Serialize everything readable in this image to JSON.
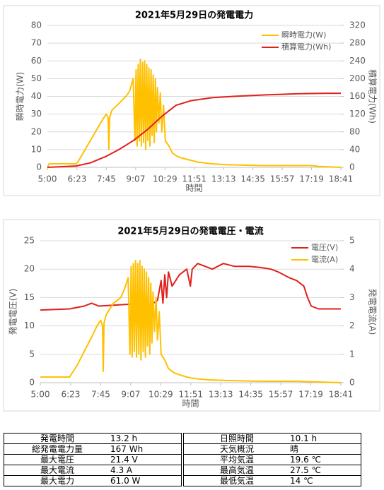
{
  "chart_data": [
    {
      "type": "line",
      "title": "2021年5月29日の発電電力",
      "x_label": "時間",
      "y_label": "瞬時電力(W)",
      "y2_label": "積算電力(Wh)",
      "grid": true,
      "xlim": [
        300,
        1121
      ],
      "xticks": [
        {
          "value": 300,
          "label": "5:00"
        },
        {
          "value": 383,
          "label": "6:23"
        },
        {
          "value": 465,
          "label": "7:45"
        },
        {
          "value": 547,
          "label": "9:07"
        },
        {
          "value": 629,
          "label": "10:29"
        },
        {
          "value": 711,
          "label": "11:51"
        },
        {
          "value": 793,
          "label": "13:13"
        },
        {
          "value": 875,
          "label": "14:35"
        },
        {
          "value": 957,
          "label": "15:57"
        },
        {
          "value": 1039,
          "label": "17:19"
        },
        {
          "value": 1121,
          "label": "18:41"
        }
      ],
      "ylim": [
        0,
        80
      ],
      "yticks": [
        0,
        10,
        20,
        30,
        40,
        50,
        60,
        70,
        80
      ],
      "y2lim": [
        0,
        320
      ],
      "y2ticks": [
        0,
        40,
        80,
        120,
        160,
        200,
        240,
        280,
        320
      ],
      "series": [
        {
          "name": "瞬時電力(W)",
          "color": "#ffc000",
          "x": [
            300,
            305,
            340,
            380,
            385,
            400,
            420,
            440,
            455,
            465,
            470,
            472,
            474,
            480,
            500,
            520,
            530,
            540,
            545,
            548,
            551,
            554,
            557,
            560,
            563,
            566,
            569,
            572,
            575,
            578,
            581,
            584,
            587,
            590,
            593,
            596,
            599,
            602,
            605,
            608,
            612,
            616,
            620,
            625,
            630,
            640,
            650,
            665,
            680,
            700,
            720,
            760,
            800,
            900,
            1000,
            1040,
            1060,
            1121
          ],
          "values": [
            0,
            2,
            2,
            2,
            3,
            8,
            15,
            22,
            27,
            30,
            28,
            10,
            28,
            32,
            36,
            40,
            43,
            50,
            15,
            55,
            12,
            58,
            15,
            61,
            12,
            59,
            14,
            60,
            10,
            58,
            15,
            56,
            12,
            55,
            18,
            52,
            14,
            50,
            20,
            45,
            25,
            42,
            20,
            35,
            15,
            12,
            8,
            6,
            5,
            4,
            3,
            2,
            1.5,
            1,
            1,
            1,
            0.5,
            0
          ]
        },
        {
          "name": "積算電力(Wh)",
          "color": "#e0201b",
          "axis": "y2",
          "x": [
            300,
            380,
            420,
            465,
            500,
            540,
            580,
            620,
            660,
            700,
            760,
            820,
            900,
            1000,
            1080,
            1121
          ],
          "values": [
            0,
            3,
            10,
            25,
            40,
            60,
            85,
            115,
            140,
            150,
            157,
            160,
            163,
            166,
            167,
            167
          ]
        }
      ]
    },
    {
      "type": "line",
      "title": "2021年5月29日の発電電圧・電流",
      "x_label": "時間",
      "y_label": "発電電圧(V)",
      "y2_label": "発電電流(A)",
      "grid": true,
      "xlim": [
        300,
        1121
      ],
      "xticks": [
        {
          "value": 300,
          "label": "5:00"
        },
        {
          "value": 383,
          "label": "6:23"
        },
        {
          "value": 465,
          "label": "7:45"
        },
        {
          "value": 547,
          "label": "9:07"
        },
        {
          "value": 629,
          "label": "10:29"
        },
        {
          "value": 711,
          "label": "11:51"
        },
        {
          "value": 793,
          "label": "13:13"
        },
        {
          "value": 875,
          "label": "14:35"
        },
        {
          "value": 957,
          "label": "15:57"
        },
        {
          "value": 1039,
          "label": "17:19"
        },
        {
          "value": 1121,
          "label": "18:41"
        }
      ],
      "ylim": [
        0,
        25
      ],
      "yticks": [
        0,
        5,
        10,
        15,
        20,
        25
      ],
      "y2lim": [
        0,
        5
      ],
      "y2ticks": [
        0,
        1,
        2,
        3,
        4,
        5
      ],
      "series": [
        {
          "name": "電圧(V)",
          "color": "#e0201b",
          "x": [
            300,
            380,
            420,
            440,
            460,
            540,
            580,
            600,
            620,
            630,
            635,
            640,
            645,
            650,
            660,
            680,
            700,
            710,
            715,
            730,
            750,
            770,
            800,
            830,
            870,
            900,
            930,
            950,
            980,
            1000,
            1020,
            1030,
            1040,
            1060,
            1121
          ],
          "values": [
            12.8,
            13,
            13.5,
            14,
            13.5,
            13.8,
            14,
            13.6,
            14.5,
            18,
            14,
            19,
            15,
            19.5,
            17,
            19,
            20,
            17,
            20,
            21,
            20.5,
            20,
            21,
            20.5,
            20.5,
            20.3,
            20,
            19.5,
            18.5,
            18,
            17,
            15,
            13.5,
            13,
            13
          ]
        },
        {
          "name": "電流(A)",
          "color": "#ffc000",
          "axis": "y2",
          "x": [
            300,
            305,
            380,
            385,
            400,
            420,
            440,
            455,
            465,
            470,
            472,
            474,
            480,
            500,
            520,
            530,
            540,
            545,
            548,
            551,
            554,
            557,
            560,
            563,
            566,
            569,
            572,
            575,
            578,
            581,
            584,
            587,
            590,
            593,
            596,
            599,
            602,
            605,
            608,
            612,
            616,
            620,
            625,
            630,
            640,
            650,
            665,
            680,
            700,
            720,
            760,
            800,
            900,
            1000,
            1121
          ],
          "values": [
            0.2,
            0.2,
            0.2,
            0.3,
            0.6,
            1.1,
            1.6,
            2.0,
            2.2,
            2.0,
            0.4,
            2.1,
            2.4,
            2.8,
            3.0,
            3.3,
            3.7,
            1.0,
            4.1,
            0.9,
            4.2,
            1.1,
            4.3,
            0.9,
            4.2,
            1.0,
            4.3,
            0.8,
            4.1,
            1.1,
            4.0,
            0.9,
            3.9,
            1.3,
            3.7,
            1.0,
            3.5,
            1.4,
            3.2,
            1.8,
            3.0,
            1.5,
            2.5,
            1.0,
            0.8,
            0.5,
            0.35,
            0.28,
            0.2,
            0.15,
            0.1,
            0.08,
            0.05,
            0.05,
            0
          ]
        }
      ]
    }
  ],
  "table": {
    "rows": [
      [
        "発電時間",
        "13.2 h",
        "日照時間",
        "10.1 h"
      ],
      [
        "総発電電力量",
        "167 Wh",
        "天気概況",
        "晴"
      ],
      [
        "最大電圧",
        "21.4 V",
        "平均気温",
        "19.6 ℃"
      ],
      [
        "最大電流",
        "4.3 A",
        "最高気温",
        "27.5 ℃"
      ],
      [
        "最大電力",
        "61.0 W",
        "最低気温",
        "14 ℃"
      ]
    ]
  }
}
